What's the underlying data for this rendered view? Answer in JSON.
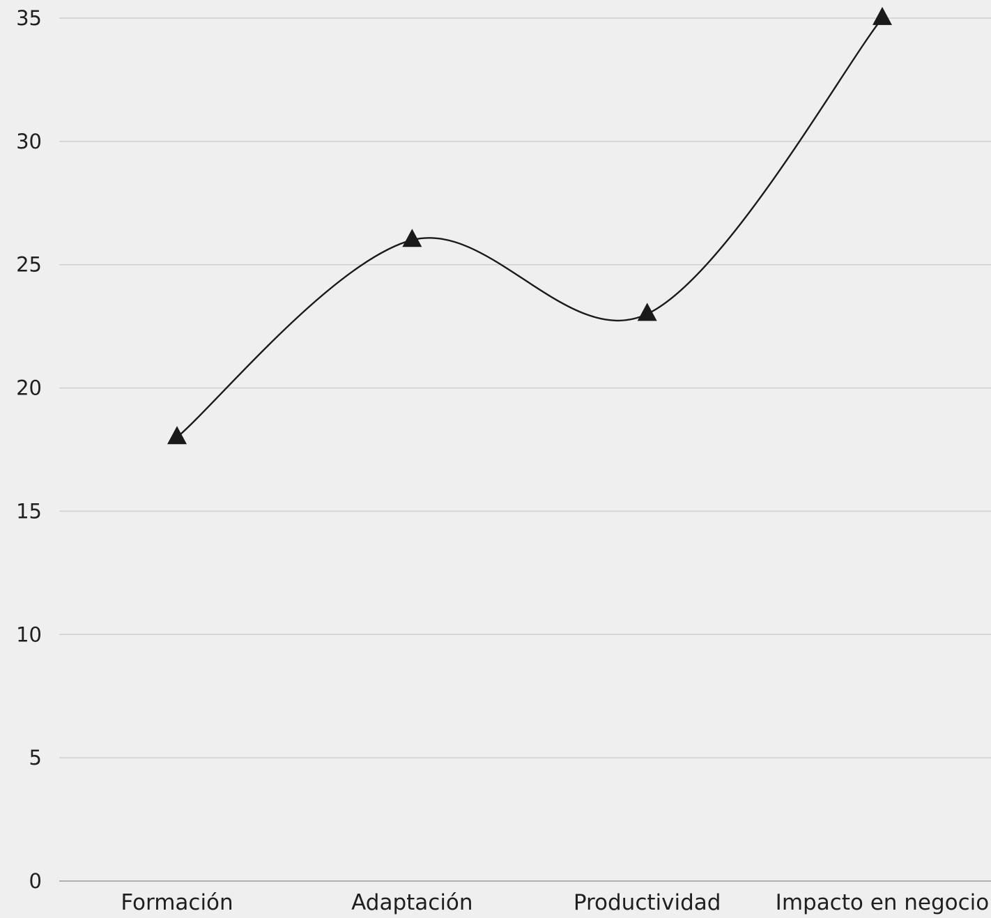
{
  "chart_data": {
    "type": "line",
    "title": "",
    "xlabel": "",
    "ylabel": "",
    "categories": [
      "Formación",
      "Adaptación",
      "Productividad",
      "Impacto en negocio"
    ],
    "series": [
      {
        "values": [
          18,
          26,
          23,
          35
        ],
        "marker": "triangle",
        "smooth": true
      }
    ],
    "ylim": [
      0,
      35
    ],
    "yticks": [
      0,
      5,
      10,
      15,
      20,
      25,
      30,
      35
    ],
    "grid": true,
    "legend": "none"
  },
  "colors": {
    "background": "#efefef",
    "series": "#1a1a1a",
    "grid": "#cfcfcf"
  }
}
